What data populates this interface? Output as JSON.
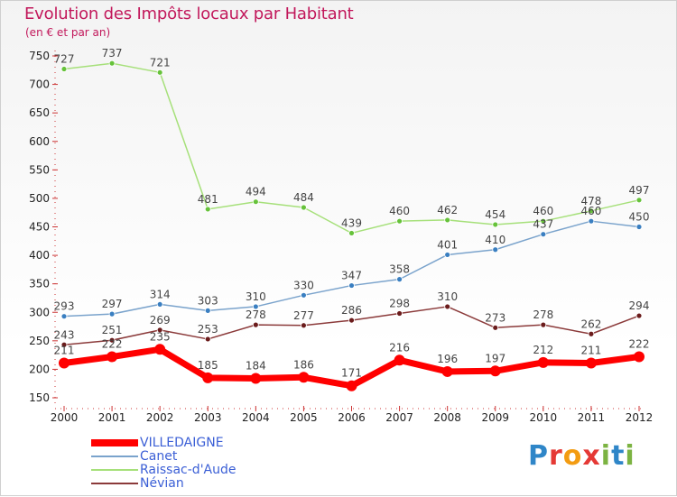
{
  "title": "Evolution des Impôts locaux par Habitant",
  "subtitle": "(en € et par an)",
  "logo": {
    "text": "Proxiti",
    "letter_colors": [
      "#2f86c8",
      "#e53935",
      "#f39c12",
      "#e53935",
      "#7cb342",
      "#2f86c8",
      "#7cb342"
    ]
  },
  "chart_data": {
    "type": "line",
    "x": [
      "2000",
      "2001",
      "2002",
      "2003",
      "2004",
      "2005",
      "2006",
      "2007",
      "2008",
      "2009",
      "2010",
      "2011",
      "2012"
    ],
    "yticks": [
      150,
      200,
      250,
      300,
      350,
      400,
      450,
      500,
      550,
      600,
      650,
      700,
      750
    ],
    "ylim": [
      150,
      750
    ],
    "grid": false,
    "legend_position": "bottom-left",
    "series": [
      {
        "name": "VILLEDAIGNE",
        "color": "#ff0000",
        "marker": "#ff0000",
        "width": 7,
        "values": [
          211,
          222,
          235,
          185,
          184,
          186,
          171,
          216,
          196,
          197,
          212,
          211,
          222
        ]
      },
      {
        "name": "Canet",
        "color": "#7aa3cc",
        "marker": "#3a7fc1",
        "width": 1.5,
        "values": [
          293,
          297,
          314,
          303,
          310,
          330,
          347,
          358,
          401,
          410,
          437,
          460,
          450
        ]
      },
      {
        "name": "Raissac-d'Aude",
        "color": "#a6e07a",
        "marker": "#66c23a",
        "width": 1.5,
        "values": [
          727,
          737,
          721,
          481,
          494,
          484,
          439,
          460,
          462,
          454,
          460,
          478,
          497
        ]
      },
      {
        "name": "Névian",
        "color": "#8b3a3a",
        "marker": "#6b1c1c",
        "width": 1.5,
        "values": [
          243,
          251,
          269,
          253,
          278,
          277,
          286,
          298,
          310,
          273,
          278,
          262,
          294
        ]
      }
    ]
  }
}
